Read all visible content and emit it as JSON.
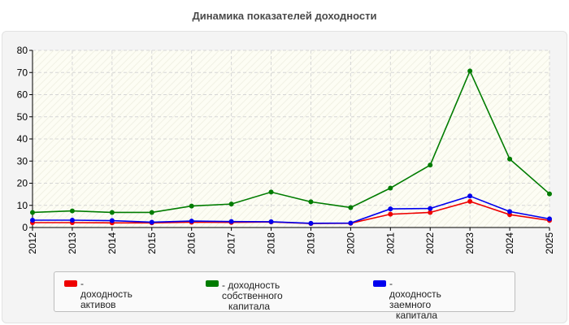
{
  "chart_data": {
    "type": "line",
    "title": "Динамика показателей доходности",
    "xlabel": "",
    "ylabel": "",
    "x": [
      "2012",
      "2013",
      "2014",
      "2015",
      "2016",
      "2017",
      "2018",
      "2019",
      "2020",
      "2021",
      "2022",
      "2023",
      "2024",
      "2025"
    ],
    "ylim": [
      0,
      80
    ],
    "yticks": [
      "0",
      "10",
      "20",
      "30",
      "40",
      "50",
      "60",
      "70",
      "80"
    ],
    "grid": true,
    "legend_position": "bottom",
    "series": [
      {
        "name": "- доходность активов",
        "color": "#ee0000",
        "values": [
          2.2,
          2.2,
          2.1,
          2.1,
          2.4,
          2.3,
          2.5,
          1.8,
          1.9,
          6.0,
          6.8,
          11.8,
          5.8,
          3.2
        ]
      },
      {
        "name": "- доходность собственного капитала",
        "color": "#007c00",
        "values": [
          6.8,
          7.5,
          6.8,
          6.8,
          9.7,
          10.6,
          16.0,
          11.6,
          9.0,
          17.8,
          28.2,
          70.7,
          30.9,
          15.2
        ]
      },
      {
        "name": "- доходность заемного капитала",
        "color": "#0000ee",
        "values": [
          3.3,
          3.3,
          3.1,
          2.4,
          2.9,
          2.7,
          2.6,
          1.9,
          2.0,
          8.4,
          8.6,
          14.2,
          7.2,
          3.9
        ]
      }
    ],
    "legend": [
      {
        "line1": "- доходность активов",
        "line2": ""
      },
      {
        "line1": "- доходность собственного",
        "line2": "капитала"
      },
      {
        "line1": "- доходность заемного",
        "line2": "капитала"
      }
    ]
  }
}
